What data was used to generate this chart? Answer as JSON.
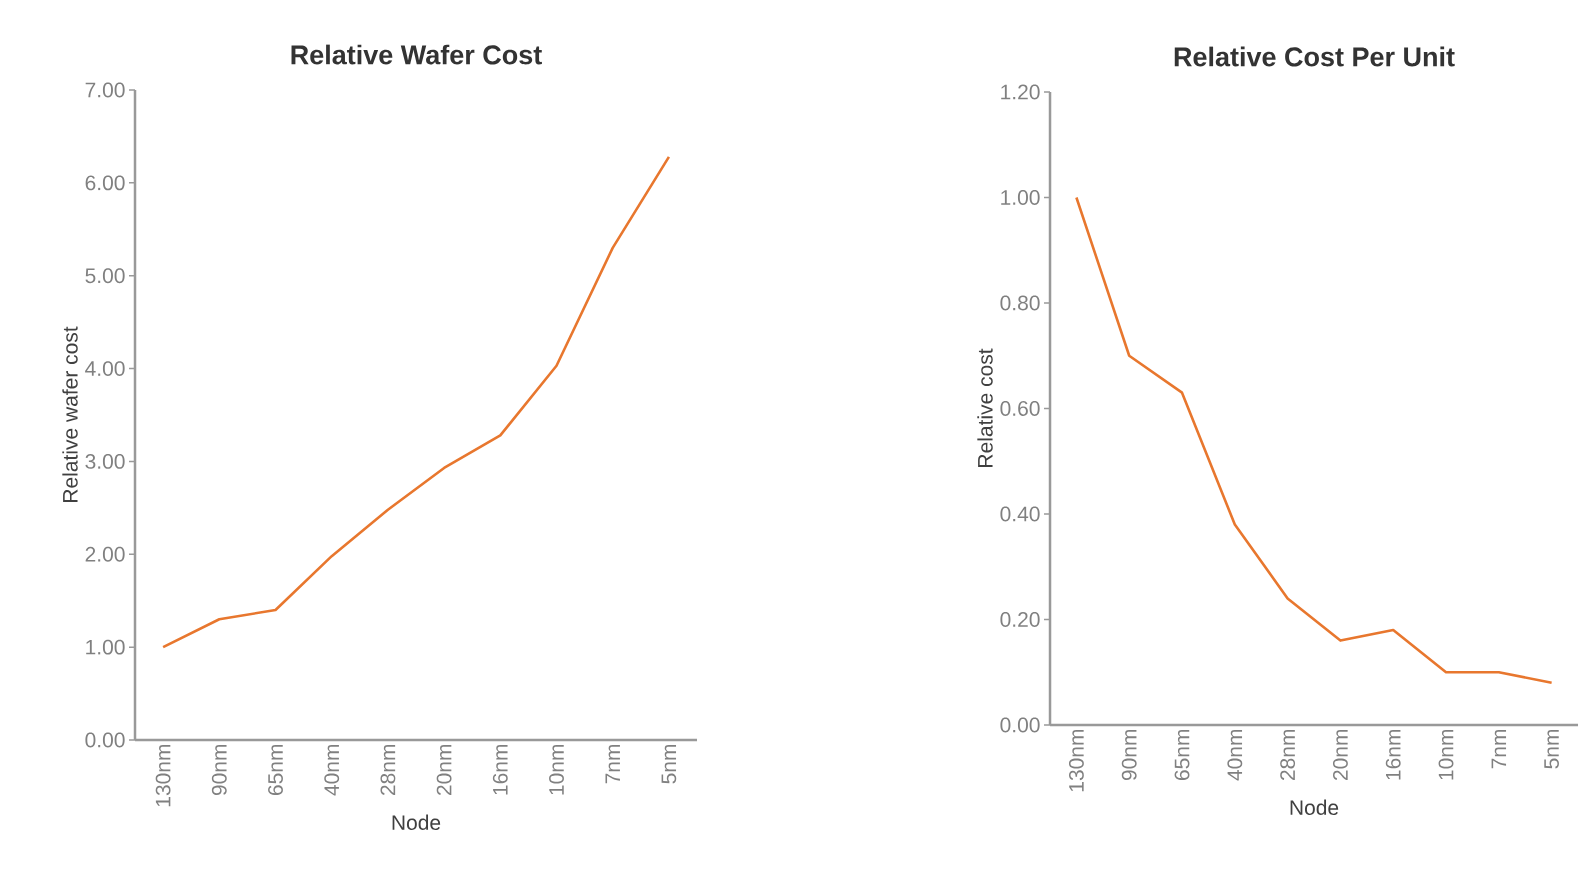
{
  "chart_data": [
    {
      "type": "line",
      "title": "Relative Wafer Cost",
      "xlabel": "Node",
      "ylabel": "Relative wafer cost",
      "categories": [
        "130nm",
        "90nm",
        "65nm",
        "40nm",
        "28nm",
        "20nm",
        "16nm",
        "10nm",
        "7nm",
        "5nm"
      ],
      "series": [
        {
          "color": "#e8772e",
          "values": [
            1.0,
            1.3,
            1.4,
            1.98,
            2.48,
            2.93,
            3.28,
            4.03,
            5.3,
            6.28
          ]
        }
      ],
      "ylim": [
        0,
        7
      ],
      "yticks": [
        {
          "value": 0,
          "label": "0.00"
        },
        {
          "value": 1,
          "label": "1.00"
        },
        {
          "value": 2,
          "label": "2.00"
        },
        {
          "value": 3,
          "label": "3.00"
        },
        {
          "value": 4,
          "label": "4.00"
        },
        {
          "value": 5,
          "label": "5.00"
        },
        {
          "value": 6,
          "label": "6.00"
        },
        {
          "value": 7,
          "label": "7.00"
        }
      ]
    },
    {
      "type": "line",
      "title": "Relative Cost Per Unit",
      "xlabel": "Node",
      "ylabel": "Relative cost",
      "categories": [
        "130nm",
        "90nm",
        "65nm",
        "40nm",
        "28nm",
        "20nm",
        "16nm",
        "10nm",
        "7nm",
        "5nm"
      ],
      "series": [
        {
          "color": "#e8772e",
          "values": [
            1.0,
            0.7,
            0.63,
            0.38,
            0.24,
            0.16,
            0.18,
            0.1,
            0.1,
            0.08
          ]
        }
      ],
      "ylim": [
        0,
        1.2
      ],
      "yticks": [
        {
          "value": 0,
          "label": "0.00"
        },
        {
          "value": 0.2,
          "label": "0.20"
        },
        {
          "value": 0.4,
          "label": "0.40"
        },
        {
          "value": 0.6,
          "label": "0.60"
        },
        {
          "value": 0.8,
          "label": "0.80"
        },
        {
          "value": 1.0,
          "label": "1.00"
        },
        {
          "value": 1.2,
          "label": "1.20"
        }
      ]
    }
  ]
}
